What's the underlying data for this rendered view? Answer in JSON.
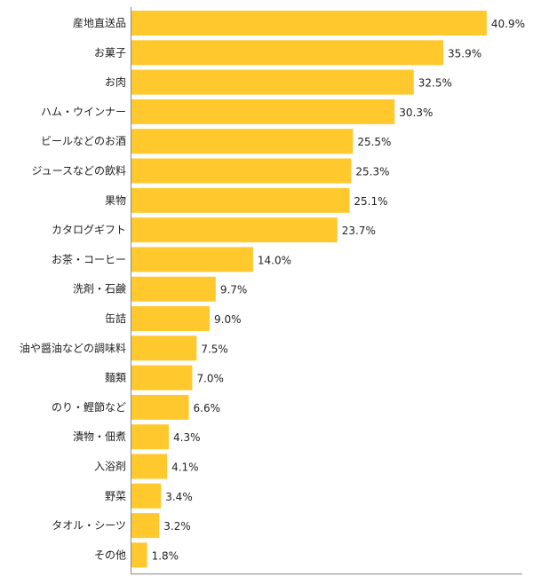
{
  "chart_data": {
    "type": "bar",
    "orientation": "horizontal",
    "title": "",
    "xlabel": "",
    "ylabel": "",
    "xlim": [
      0,
      45
    ],
    "grid": false,
    "legend": "none",
    "bar_color": "#FFC92E",
    "axis_color": "#888888",
    "value_suffix": "%",
    "categories": [
      "産地直送品",
      "お菓子",
      "お肉",
      "ハム・ウインナー",
      "ビールなどのお酒",
      "ジュースなどの飲料",
      "果物",
      "カタログギフト",
      "お茶・コーヒー",
      "洗剤・石鹸",
      "缶詰",
      "油や醤油などの調味料",
      "麺類",
      "のり・鰹節など",
      "漬物・佃煮",
      "入浴剤",
      "野菜",
      "タオル・シーツ",
      "その他"
    ],
    "values": [
      40.9,
      35.9,
      32.5,
      30.3,
      25.5,
      25.3,
      25.1,
      23.7,
      14.0,
      9.7,
      9.0,
      7.5,
      7.0,
      6.6,
      4.3,
      4.1,
      3.4,
      3.2,
      1.8
    ],
    "value_labels": [
      "40.9%",
      "35.9%",
      "32.5%",
      "30.3%",
      "25.5%",
      "25.3%",
      "25.1%",
      "23.7%",
      "14.0%",
      "9.7%",
      "9.0%",
      "7.5%",
      "7.0%",
      "6.6%",
      "4.3%",
      "4.1%",
      "3.4%",
      "3.2%",
      "1.8%"
    ]
  }
}
